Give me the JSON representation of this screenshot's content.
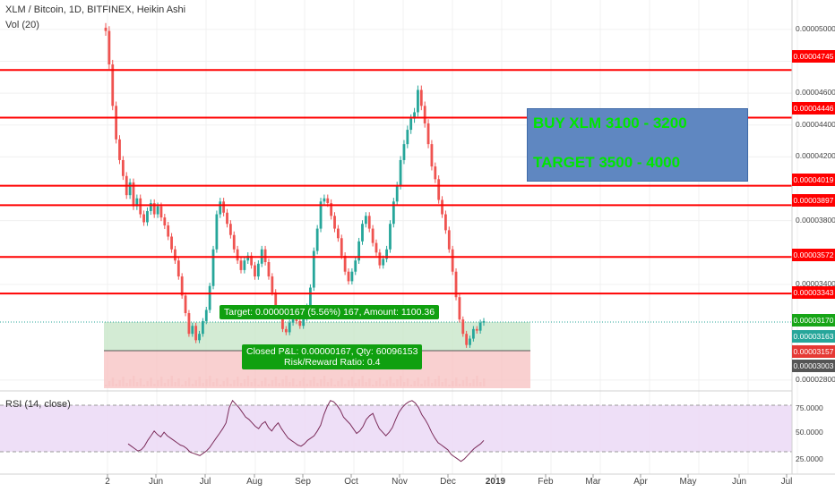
{
  "header": {
    "title": "XLM / Bitcoin, 1D, BITFINEX, Heikin Ashi",
    "volume": "Vol (20)",
    "rsi": "RSI (14, close)"
  },
  "annotation": {
    "buy": "BUY XLM 3100 - 3200",
    "target": "TARGET 3500 - 4000"
  },
  "position": {
    "target_label": "Target: 0.00000167 (5.56%) 167, Amount: 1100.36",
    "closed_label": "Closed P&L: 0.00000167, Qty: 60096153",
    "rr_label": "Risk/Reward Ratio: 0.4"
  },
  "price_axis": {
    "ticks": [
      "0.00005000",
      "0.00004800",
      "0.00004600",
      "0.00004400",
      "0.00004200",
      "0.00003800",
      "0.00003400",
      "0.00002800"
    ],
    "tags": [
      {
        "text": "0.00004745",
        "color": "#ff0000"
      },
      {
        "text": "0.00004446",
        "color": "#ff0000"
      },
      {
        "text": "0.00004019",
        "color": "#ff0000"
      },
      {
        "text": "0.00003897",
        "color": "#ff0000"
      },
      {
        "text": "0.00003572",
        "color": "#ff0000"
      },
      {
        "text": "0.00003343",
        "color": "#ff0000"
      },
      {
        "text": "0.00003170",
        "color": "#17a517"
      },
      {
        "text": "0.00003163",
        "color": "#26a69a"
      },
      {
        "text": "0.00003157",
        "color": "#e53935"
      },
      {
        "text": "0.00003003",
        "color": "#555555"
      }
    ]
  },
  "rsi_axis": {
    "ticks": [
      "75.0000",
      "50.0000",
      "25.0000"
    ]
  },
  "x_axis": {
    "labels": [
      "2",
      "Jun",
      "Jul",
      "Aug",
      "Sep",
      "Oct",
      "Nov",
      "Dec",
      "2019",
      "Feb",
      "Mar",
      "Apr",
      "May",
      "Jun",
      "Jul"
    ]
  },
  "colors": {
    "level_line": "#ff0000",
    "up": "#26a69a",
    "down": "#ef5350",
    "profit_zone": "#c8e6c9",
    "loss_zone": "#f8c4c4",
    "rsi_band": "#ecdcf6",
    "trade_box": "#5f87c1"
  },
  "chart_data": {
    "type": "candlestick",
    "series": [
      {
        "name": "XLM / Bitcoin",
        "values": [
          4.99e-05,
          4.78e-05,
          4.52e-05,
          4.31e-05,
          4.18e-05,
          4.08e-05,
          3.96e-05,
          4.04e-05,
          3.89e-05,
          3.94e-05,
          3.84e-05,
          3.79e-05,
          3.86e-05,
          3.91e-05,
          3.84e-05,
          3.89e-05,
          3.82e-05,
          3.77e-05,
          3.7e-05,
          3.62e-05,
          3.55e-05,
          3.45e-05,
          3.33e-05,
          3.22e-05,
          3.09e-05,
          3.14e-05,
          3.05e-05,
          3.09e-05,
          3.17e-05,
          3.24e-05,
          3.39e-05,
          3.62e-05,
          3.84e-05,
          3.92e-05,
          3.85e-05,
          3.78e-05,
          3.71e-05,
          3.62e-05,
          3.55e-05,
          3.49e-05,
          3.55e-05,
          3.58e-05,
          3.52e-05,
          3.45e-05,
          3.53e-05,
          3.62e-05,
          3.54e-05,
          3.45e-05,
          3.35e-05,
          3.25e-05,
          3.21e-05,
          3.12e-05,
          3.1e-05,
          3.16e-05,
          3.18e-05,
          3.17e-05,
          3.14e-05,
          3.19e-05,
          3.26e-05,
          3.38e-05,
          3.61e-05,
          3.75e-05,
          3.92e-05,
          3.94e-05,
          3.91e-05,
          3.83e-05,
          3.75e-05,
          3.69e-05,
          3.58e-05,
          3.48e-05,
          3.42e-05,
          3.48e-05,
          3.55e-05,
          3.67e-05,
          3.78e-05,
          3.83e-05,
          3.75e-05,
          3.66e-05,
          3.6e-05,
          3.52e-05,
          3.56e-05,
          3.62e-05,
          3.78e-05,
          3.92e-05,
          4.02e-05,
          4.18e-05,
          4.28e-05,
          4.37e-05,
          4.44e-05,
          4.48e-05,
          4.62e-05,
          4.52e-05,
          4.41e-05,
          4.28e-05,
          4.14e-05,
          4.06e-05,
          3.93e-05,
          3.84e-05,
          3.74e-05,
          3.62e-05,
          3.48e-05,
          3.32e-05,
          3.18e-05,
          3.09e-05,
          3.02e-05,
          3.06e-05,
          3.12e-05,
          3.11e-05,
          3.16e-05,
          3.17e-05
        ]
      }
    ],
    "rsi": [
      37,
      35,
      33,
      31,
      32,
      35,
      40,
      44,
      48,
      45,
      43,
      47,
      44,
      42,
      40,
      38,
      36,
      35,
      33,
      30,
      29,
      28,
      27,
      29,
      31,
      34,
      38,
      42,
      46,
      50,
      55,
      68,
      74,
      71,
      68,
      64,
      60,
      58,
      55,
      52,
      50,
      54,
      56,
      51,
      48,
      52,
      55,
      50,
      46,
      42,
      40,
      38,
      36,
      35,
      37,
      40,
      42,
      44,
      48,
      53,
      62,
      69,
      74,
      73,
      70,
      66,
      60,
      57,
      54,
      50,
      46,
      48,
      52,
      58,
      61,
      63,
      56,
      50,
      47,
      44,
      47,
      51,
      58,
      64,
      68,
      71,
      73,
      74,
      72,
      68,
      62,
      58,
      53,
      47,
      42,
      38,
      36,
      34,
      32,
      28,
      26,
      24,
      22,
      24,
      27,
      30,
      33,
      35,
      37,
      40
    ],
    "levels": [
      4.745e-05,
      4.446e-05,
      4.019e-05,
      3.897e-05,
      3.572e-05,
      3.343e-05
    ],
    "entry": 3.003e-05,
    "target_price": 3.17e-05,
    "stop_price": 3.157e-05,
    "ylim": [
      2.76e-05,
      5.1e-05
    ],
    "rsi_ylim": [
      15,
      80
    ]
  }
}
